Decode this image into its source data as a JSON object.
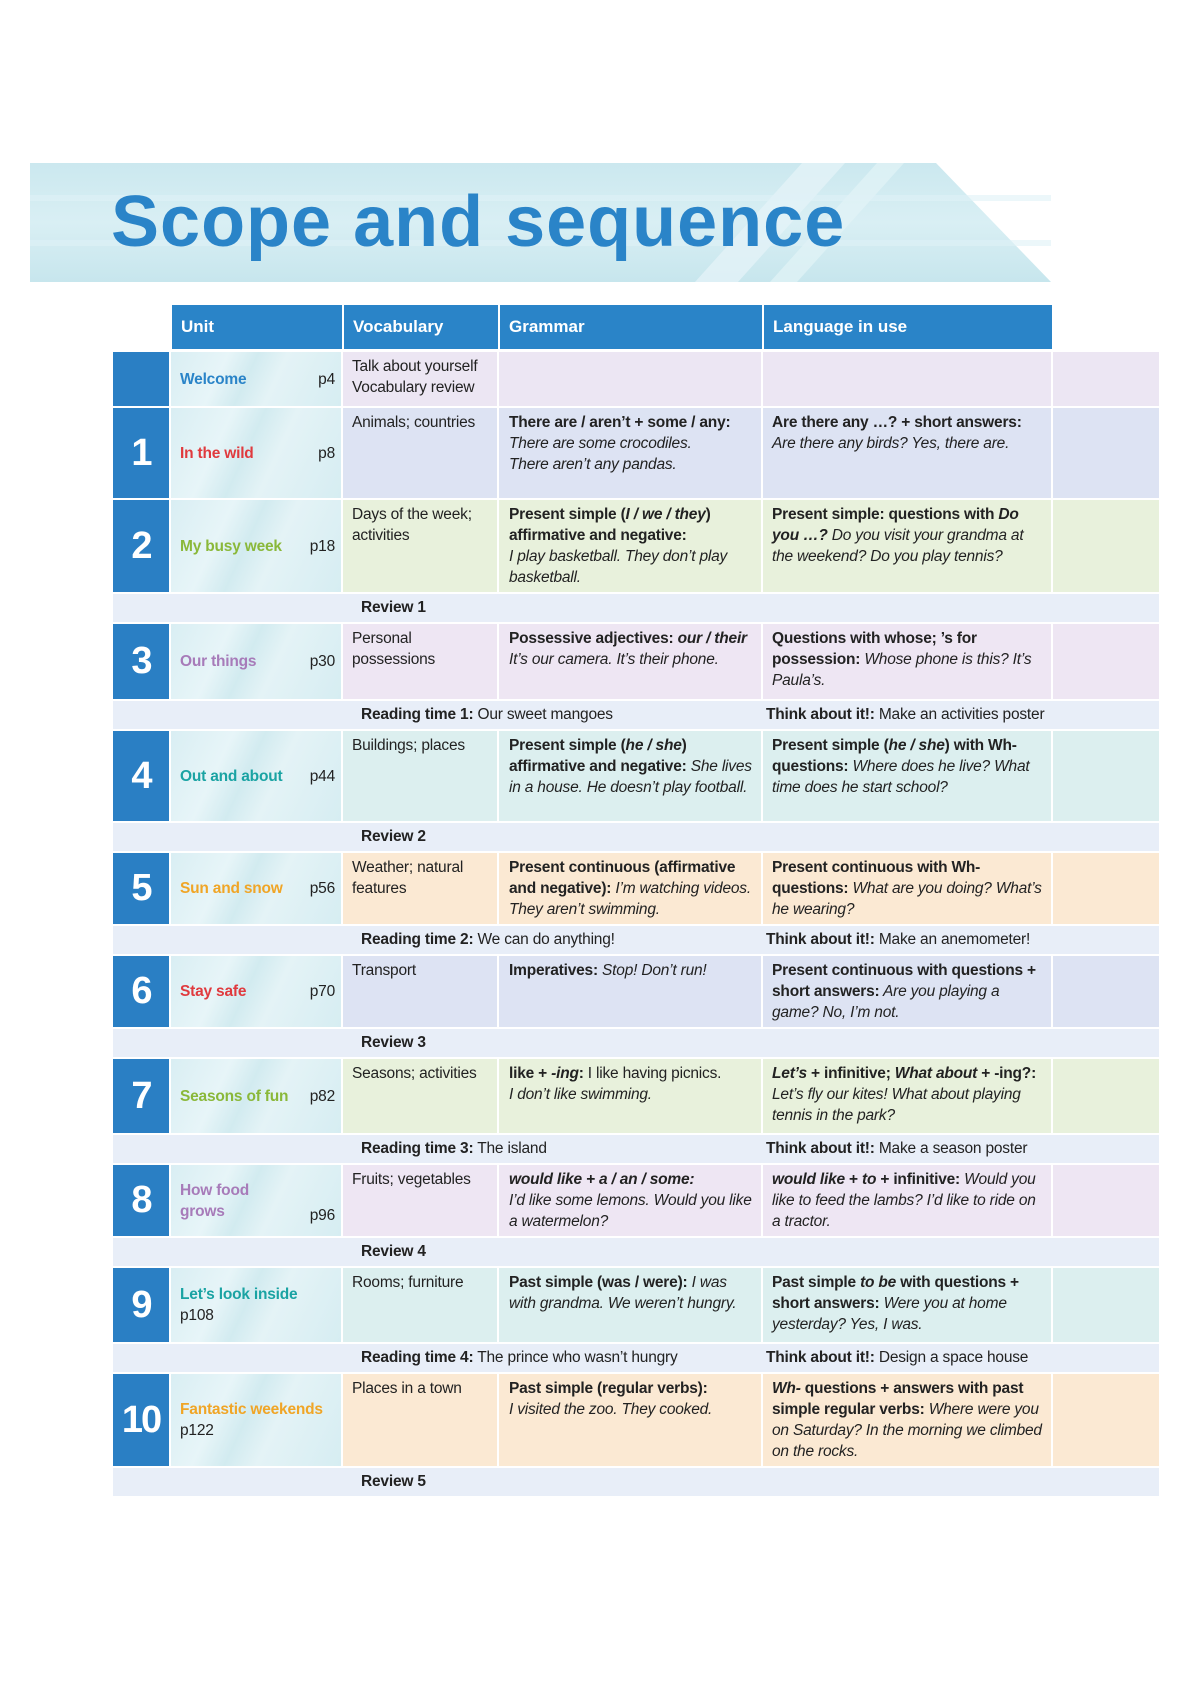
{
  "title": "Scope and sequence",
  "colors": {
    "brand_blue": "#2a84c8",
    "banner": "#cde9ef"
  },
  "header": [
    "Unit",
    "Vocabulary",
    "Grammar",
    "Language in use"
  ],
  "units": [
    {
      "number": "",
      "name": "Welcome",
      "page": "p4",
      "name_color": "#2a84c8",
      "row_color": "#ece6f3",
      "vocabulary": [
        {
          "t": "Talk about yourself",
          "s": ""
        },
        {
          "br": true
        },
        {
          "t": "Vocabulary review",
          "s": ""
        }
      ],
      "grammar": [],
      "language": []
    },
    {
      "number": "1",
      "name": "In the wild",
      "page": "p8",
      "name_color": "#e03a3e",
      "row_color": "#dde3f3",
      "vocabulary": [
        {
          "t": "Animals; countries",
          "s": ""
        }
      ],
      "grammar": [
        {
          "t": "There are / aren’t + some / any:",
          "s": "b"
        },
        {
          "br": true
        },
        {
          "t": "There are some crocodiles.",
          "s": "i"
        },
        {
          "br": true
        },
        {
          "t": "There aren’t any pandas.",
          "s": "i"
        }
      ],
      "language": [
        {
          "t": "Are there any …? + short answers:",
          "s": "b"
        },
        {
          "br": true
        },
        {
          "t": "Are there any birds? Yes, there are.",
          "s": "i"
        }
      ]
    },
    {
      "number": "2",
      "name": "My busy week",
      "page": "p18",
      "name_color": "#8ab83a",
      "row_color": "#e8f1dc",
      "vocabulary": [
        {
          "t": "Days of the week; activities",
          "s": ""
        }
      ],
      "grammar": [
        {
          "t": "Present simple (",
          "s": "b"
        },
        {
          "t": "I / we / they",
          "s": "bi"
        },
        {
          "t": ") affirmative and negative:",
          "s": "b"
        },
        {
          "br": true
        },
        {
          "t": "I play basketball. They don’t play basketball.",
          "s": "i"
        }
      ],
      "language": [
        {
          "t": "Present simple: questions with ",
          "s": "b"
        },
        {
          "t": "Do you …?",
          "s": "bi"
        },
        {
          "t": " Do you visit your grandma at the weekend? Do you play tennis?",
          "s": "i"
        }
      ]
    },
    {
      "separator": true,
      "left_bold": "Review 1",
      "left_text": "",
      "right_bold": "",
      "right_text": ""
    },
    {
      "number": "3",
      "name": "Our things",
      "page": "p30",
      "name_color": "#a77bb9",
      "row_color": "#eee6f3",
      "vocabulary": [
        {
          "t": "Personal possessions",
          "s": ""
        }
      ],
      "grammar": [
        {
          "t": "Possessive adjectives: ",
          "s": "b"
        },
        {
          "t": "our / their",
          "s": "bi"
        },
        {
          "t": " It’s our camera. It’s their phone.",
          "s": "i"
        }
      ],
      "language": [
        {
          "t": "Questions with whose; ’s for possession:",
          "s": "b"
        },
        {
          "t": " Whose phone is this? It’s Paula’s.",
          "s": "i"
        }
      ]
    },
    {
      "separator": true,
      "left_bold": "Reading time 1:",
      "left_text": " Our sweet mangoes",
      "right_bold": "Think about it!:",
      "right_text": " Make an activities poster"
    },
    {
      "number": "4",
      "name": "Out and about",
      "page": "p44",
      "name_color": "#1aa3a3",
      "row_color": "#dcefef",
      "vocabulary": [
        {
          "t": "Buildings; places",
          "s": ""
        }
      ],
      "grammar": [
        {
          "t": "Present simple (",
          "s": "b"
        },
        {
          "t": "he / she",
          "s": "bi"
        },
        {
          "t": ") affirmative and negative:",
          "s": "b"
        },
        {
          "t": " She lives in a house. He doesn’t play football.",
          "s": "i"
        }
      ],
      "language": [
        {
          "t": "Present simple (",
          "s": "b"
        },
        {
          "t": "he / she",
          "s": "bi"
        },
        {
          "t": ") with Wh- questions:",
          "s": "b"
        },
        {
          "t": " Where does he live? What time does he start school?",
          "s": "i"
        }
      ]
    },
    {
      "separator": true,
      "left_bold": "Review 2",
      "left_text": "",
      "right_bold": "",
      "right_text": ""
    },
    {
      "number": "5",
      "name": "Sun and snow",
      "page": "p56",
      "name_color": "#f0a526",
      "row_color": "#fbe9d3",
      "vocabulary": [
        {
          "t": "Weather; natural features",
          "s": ""
        }
      ],
      "grammar": [
        {
          "t": "Present continuous (affirmative and negative):",
          "s": "b"
        },
        {
          "t": " I’m watching videos. They aren’t swimming.",
          "s": "i"
        }
      ],
      "language": [
        {
          "t": "Present continuous with Wh- questions:",
          "s": "b"
        },
        {
          "t": " What are you doing? What’s he wearing?",
          "s": "i"
        }
      ]
    },
    {
      "separator": true,
      "left_bold": "Reading time 2:",
      "left_text": " We can do anything!",
      "right_bold": "Think about it!:",
      "right_text": " Make an anemometer!"
    },
    {
      "number": "6",
      "name": "Stay safe",
      "page": "p70",
      "name_color": "#e03a3e",
      "row_color": "#dde3f3",
      "vocabulary": [
        {
          "t": "Transport",
          "s": ""
        }
      ],
      "grammar": [
        {
          "t": "Imperatives:",
          "s": "b"
        },
        {
          "t": " Stop! Don’t run!",
          "s": "i"
        }
      ],
      "language": [
        {
          "t": "Present continuous with questions + short answers:",
          "s": "b"
        },
        {
          "t": " Are you playing a game? No, I’m not.",
          "s": "i"
        }
      ]
    },
    {
      "separator": true,
      "left_bold": "Review 3",
      "left_text": "",
      "right_bold": "",
      "right_text": ""
    },
    {
      "number": "7",
      "name": "Seasons of fun",
      "page": "p82",
      "name_color": "#8ab83a",
      "row_color": "#e8f1dc",
      "vocabulary": [
        {
          "t": "Seasons; activities",
          "s": ""
        }
      ],
      "grammar": [
        {
          "t": "like + ",
          "s": "b"
        },
        {
          "t": "-ing",
          "s": "bi"
        },
        {
          "t": ":",
          "s": "b"
        },
        {
          "t": " I like having picnics.",
          "s": ""
        },
        {
          "br": true
        },
        {
          "t": "I don’t like swimming.",
          "s": "i"
        }
      ],
      "language": [
        {
          "t": "Let’s",
          "s": "bi"
        },
        {
          "t": " + infinitive; ",
          "s": "b"
        },
        {
          "t": "What about",
          "s": "bi"
        },
        {
          "t": " + -ing?:",
          "s": "b"
        },
        {
          "t": " Let’s fly our kites! What about playing tennis in the park?",
          "s": "i"
        }
      ]
    },
    {
      "separator": true,
      "left_bold": "Reading time 3:",
      "left_text": " The island",
      "right_bold": "Think about it!:",
      "right_text": " Make a season poster"
    },
    {
      "number": "8",
      "name": "How food grows",
      "page": "p96",
      "name_color": "#a77bb9",
      "row_color": "#eee6f3",
      "vocabulary": [
        {
          "t": "Fruits; vegetables",
          "s": ""
        }
      ],
      "grammar": [
        {
          "t": "would like + a / an / some:",
          "s": "bi"
        },
        {
          "br": true
        },
        {
          "t": "I’d like some lemons. Would you like a watermelon?",
          "s": "i"
        }
      ],
      "language": [
        {
          "t": "would like",
          "s": "bi"
        },
        {
          "t": " + ",
          "s": "b"
        },
        {
          "t": "to",
          "s": "bi"
        },
        {
          "t": " + infinitive:",
          "s": "b"
        },
        {
          "t": " Would you like to feed the lambs? I’d like to ride on a tractor.",
          "s": "i"
        }
      ]
    },
    {
      "separator": true,
      "left_bold": "Review 4",
      "left_text": "",
      "right_bold": "",
      "right_text": ""
    },
    {
      "number": "9",
      "name": "Let’s look inside",
      "page": "p108",
      "name_color": "#1aa3a3",
      "row_color": "#dcefef",
      "vocabulary": [
        {
          "t": "Rooms; furniture",
          "s": ""
        }
      ],
      "grammar": [
        {
          "t": "Past simple (was / were):",
          "s": "b"
        },
        {
          "t": " I was with grandma. We weren’t hungry.",
          "s": "i"
        }
      ],
      "language": [
        {
          "t": "Past simple ",
          "s": "b"
        },
        {
          "t": "to be",
          "s": "bi"
        },
        {
          "t": " with questions + short answers:",
          "s": "b"
        },
        {
          "t": " Were you at home yesterday? Yes, I was.",
          "s": "i"
        }
      ]
    },
    {
      "separator": true,
      "left_bold": "Reading time 4:",
      "left_text": " The prince who wasn’t hungry",
      "right_bold": "Think about it!:",
      "right_text": " Design a space house"
    },
    {
      "number": "10",
      "name": "Fantastic weekends",
      "page": "p122",
      "name_color": "#f0a526",
      "row_color": "#fbe9d3",
      "vocabulary": [
        {
          "t": "Places in a town",
          "s": ""
        }
      ],
      "grammar": [
        {
          "t": "Past simple (regular verbs):",
          "s": "b"
        },
        {
          "br": true
        },
        {
          "t": "I visited the zoo. They cooked.",
          "s": "i"
        }
      ],
      "language": [
        {
          "t": "Wh-",
          "s": "bi"
        },
        {
          "t": " questions + answers with past simple regular verbs:",
          "s": "b"
        },
        {
          "t": " Where were you on Saturday? In the morning we climbed on the rocks.",
          "s": "i"
        }
      ]
    },
    {
      "separator": true,
      "left_bold": "Review 5",
      "left_text": "",
      "right_bold": "",
      "right_text": ""
    }
  ]
}
